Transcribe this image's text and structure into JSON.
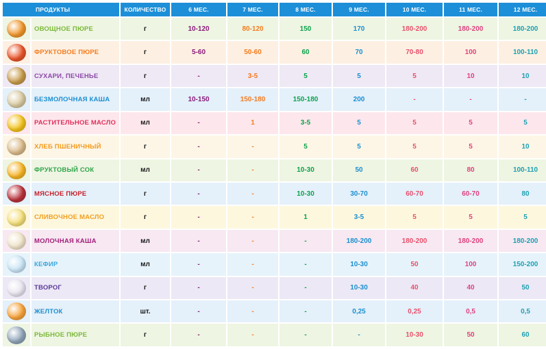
{
  "headers": [
    "ПРОДУКТЫ",
    "КОЛИЧЕСТВО",
    "6 МЕС.",
    "7 МЕС.",
    "8 МЕС.",
    "9 МЕС.",
    "10 МЕС.",
    "11 МЕС.",
    "12 МЕС."
  ],
  "column_colors": [
    "#1a1a1a",
    "#8b1a7a",
    "#f47c20",
    "#0ba24b",
    "#1b8fd0",
    "#e8506c",
    "#e0417f",
    "#1ea0b2"
  ],
  "rows": [
    {
      "name": "Овощное пюре",
      "icon": "pumpkin-puree-icon",
      "icon_color": "#f0962c",
      "name_color": "#7bb93a",
      "bg": "#eef5e2",
      "values": [
        "г",
        "10-120",
        "80-120",
        "150",
        "170",
        "180-200",
        "180-200",
        "180-200"
      ]
    },
    {
      "name": "Фруктовое пюре",
      "icon": "fruit-puree-jar-icon",
      "icon_color": "#e8542a",
      "name_color": "#f47c20",
      "bg": "#fdf0e2",
      "values": [
        "г",
        "5-60",
        "50-60",
        "60",
        "70",
        "70-80",
        "100",
        "100-110"
      ]
    },
    {
      "name": "Сухари, печенье",
      "icon": "biscuits-icon",
      "icon_color": "#c79a4a",
      "name_color": "#8b4aa6",
      "bg": "#efe8f5",
      "values": [
        "г",
        "-",
        "3-5",
        "5",
        "5",
        "5",
        "10",
        "10"
      ]
    },
    {
      "name": "Безмолочная каша",
      "icon": "porridge-icon",
      "icon_color": "#d8c9a0",
      "name_color": "#1b8fd0",
      "bg": "#e4f0fa",
      "values": [
        "мл",
        "10-150",
        "150-180",
        "150-180",
        "200",
        "-",
        "-",
        "-"
      ]
    },
    {
      "name": "Растительное масло",
      "icon": "sunflower-icon",
      "icon_color": "#f2c21c",
      "name_color": "#e0305c",
      "bg": "#fde7ec",
      "values": [
        "мл",
        "-",
        "1",
        "3-5",
        "5",
        "5",
        "5",
        "5"
      ]
    },
    {
      "name": "Хлеб пшеничный",
      "icon": "bread-icon",
      "icon_color": "#d9b98a",
      "name_color": "#f49a1c",
      "bg": "#fdf6e6",
      "values": [
        "г",
        "-",
        "-",
        "5",
        "5",
        "5",
        "5",
        "10"
      ]
    },
    {
      "name": "Фруктовый сок",
      "icon": "juice-glass-icon",
      "icon_color": "#f5b324",
      "name_color": "#2fa54a",
      "bg": "#eef5e2",
      "values": [
        "мл",
        "-",
        "-",
        "10-30",
        "50",
        "60",
        "80",
        "100-110"
      ]
    },
    {
      "name": "Мясное пюре",
      "icon": "meat-icon",
      "icon_color": "#b8323a",
      "name_color": "#c8202a",
      "bg": "#e4f0fa",
      "values": [
        "г",
        "-",
        "-",
        "10-30",
        "30-70",
        "60-70",
        "60-70",
        "80"
      ]
    },
    {
      "name": "Сливочное масло",
      "icon": "butter-icon",
      "icon_color": "#f4df7a",
      "name_color": "#f0a020",
      "bg": "#fdf7de",
      "values": [
        "г",
        "-",
        "-",
        "1",
        "3-5",
        "5",
        "5",
        "5"
      ]
    },
    {
      "name": "Молочная каша",
      "icon": "milk-porridge-icon",
      "icon_color": "#efe3c8",
      "name_color": "#a3207a",
      "bg": "#f7e8f2",
      "values": [
        "мл",
        "-",
        "-",
        "-",
        "180-200",
        "180-200",
        "180-200",
        "180-200"
      ]
    },
    {
      "name": "Кефир",
      "icon": "kefir-glass-icon",
      "icon_color": "#c9e4f5",
      "name_color": "#3aa6dd",
      "bg": "#e6f3fb",
      "values": [
        "мл",
        "-",
        "-",
        "-",
        "10-30",
        "50",
        "100",
        "150-200"
      ]
    },
    {
      "name": "Творог",
      "icon": "cottage-cheese-icon",
      "icon_color": "#e8e4ef",
      "name_color": "#5a3a9a",
      "bg": "#ece8f5",
      "values": [
        "г",
        "-",
        "-",
        "-",
        "10-30",
        "40",
        "40",
        "50"
      ]
    },
    {
      "name": "Желток",
      "icon": "egg-icon",
      "icon_color": "#f6a23a",
      "name_color": "#1b8fd0",
      "bg": "#e4f0fa",
      "values": [
        "шт.",
        "-",
        "-",
        "-",
        "0,25",
        "0,25",
        "0,5",
        "0,5"
      ]
    },
    {
      "name": "Рыбное пюре",
      "icon": "fish-icon",
      "icon_color": "#8fa3b8",
      "name_color": "#7bb93a",
      "bg": "#eef5e2",
      "values": [
        "г",
        "-",
        "-",
        "-",
        "-",
        "10-30",
        "50",
        "60"
      ]
    }
  ]
}
